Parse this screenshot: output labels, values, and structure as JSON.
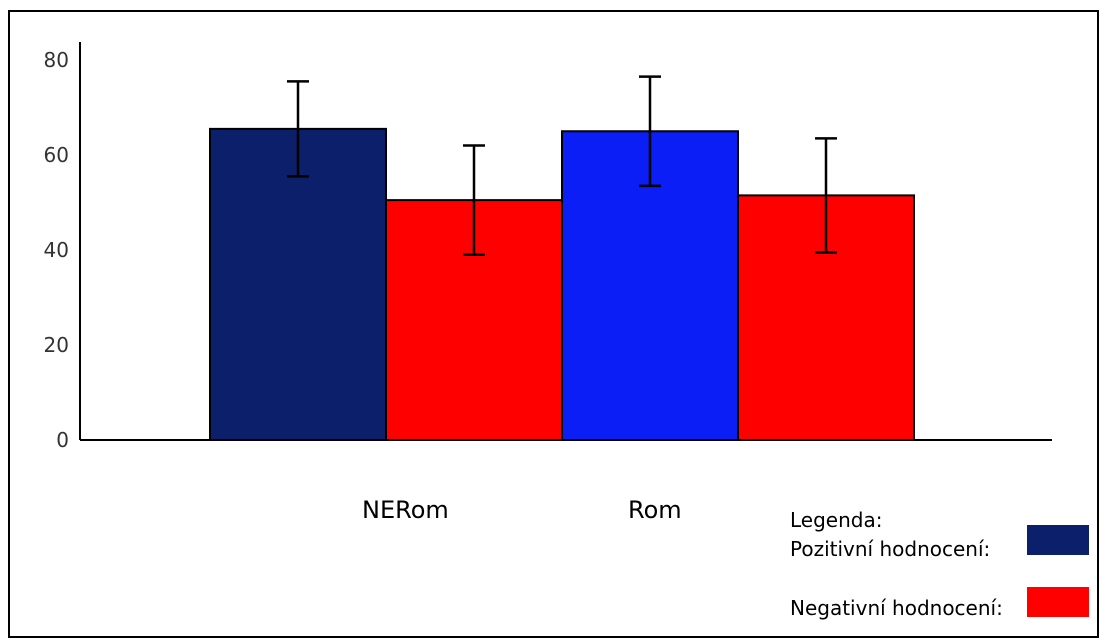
{
  "chart_data": {
    "type": "bar",
    "categories": [
      "NERom",
      "Rom"
    ],
    "ylim": [
      0,
      80
    ],
    "yticks": [
      0,
      20,
      40,
      60,
      80
    ],
    "grid": false,
    "legend_position": "bottom-right",
    "series": [
      {
        "name": "Pozitivní hodnocení:",
        "values": [
          65.5,
          65
        ],
        "error": [
          10,
          11.5
        ],
        "colors": [
          "#0c1f6b",
          "#0a1ef5"
        ]
      },
      {
        "name": "Negativní hodnocení:",
        "values": [
          50.5,
          51.5
        ],
        "error": [
          11.5,
          12
        ],
        "colors": [
          "#ff0000",
          "#ff0000"
        ]
      }
    ],
    "legend": {
      "title": "Legenda:",
      "items": [
        {
          "label": "Pozitivní hodnocení:",
          "color": "#0c1f6b"
        },
        {
          "label": "Negativní hodnocení:",
          "color": "#ff0000"
        }
      ]
    }
  }
}
